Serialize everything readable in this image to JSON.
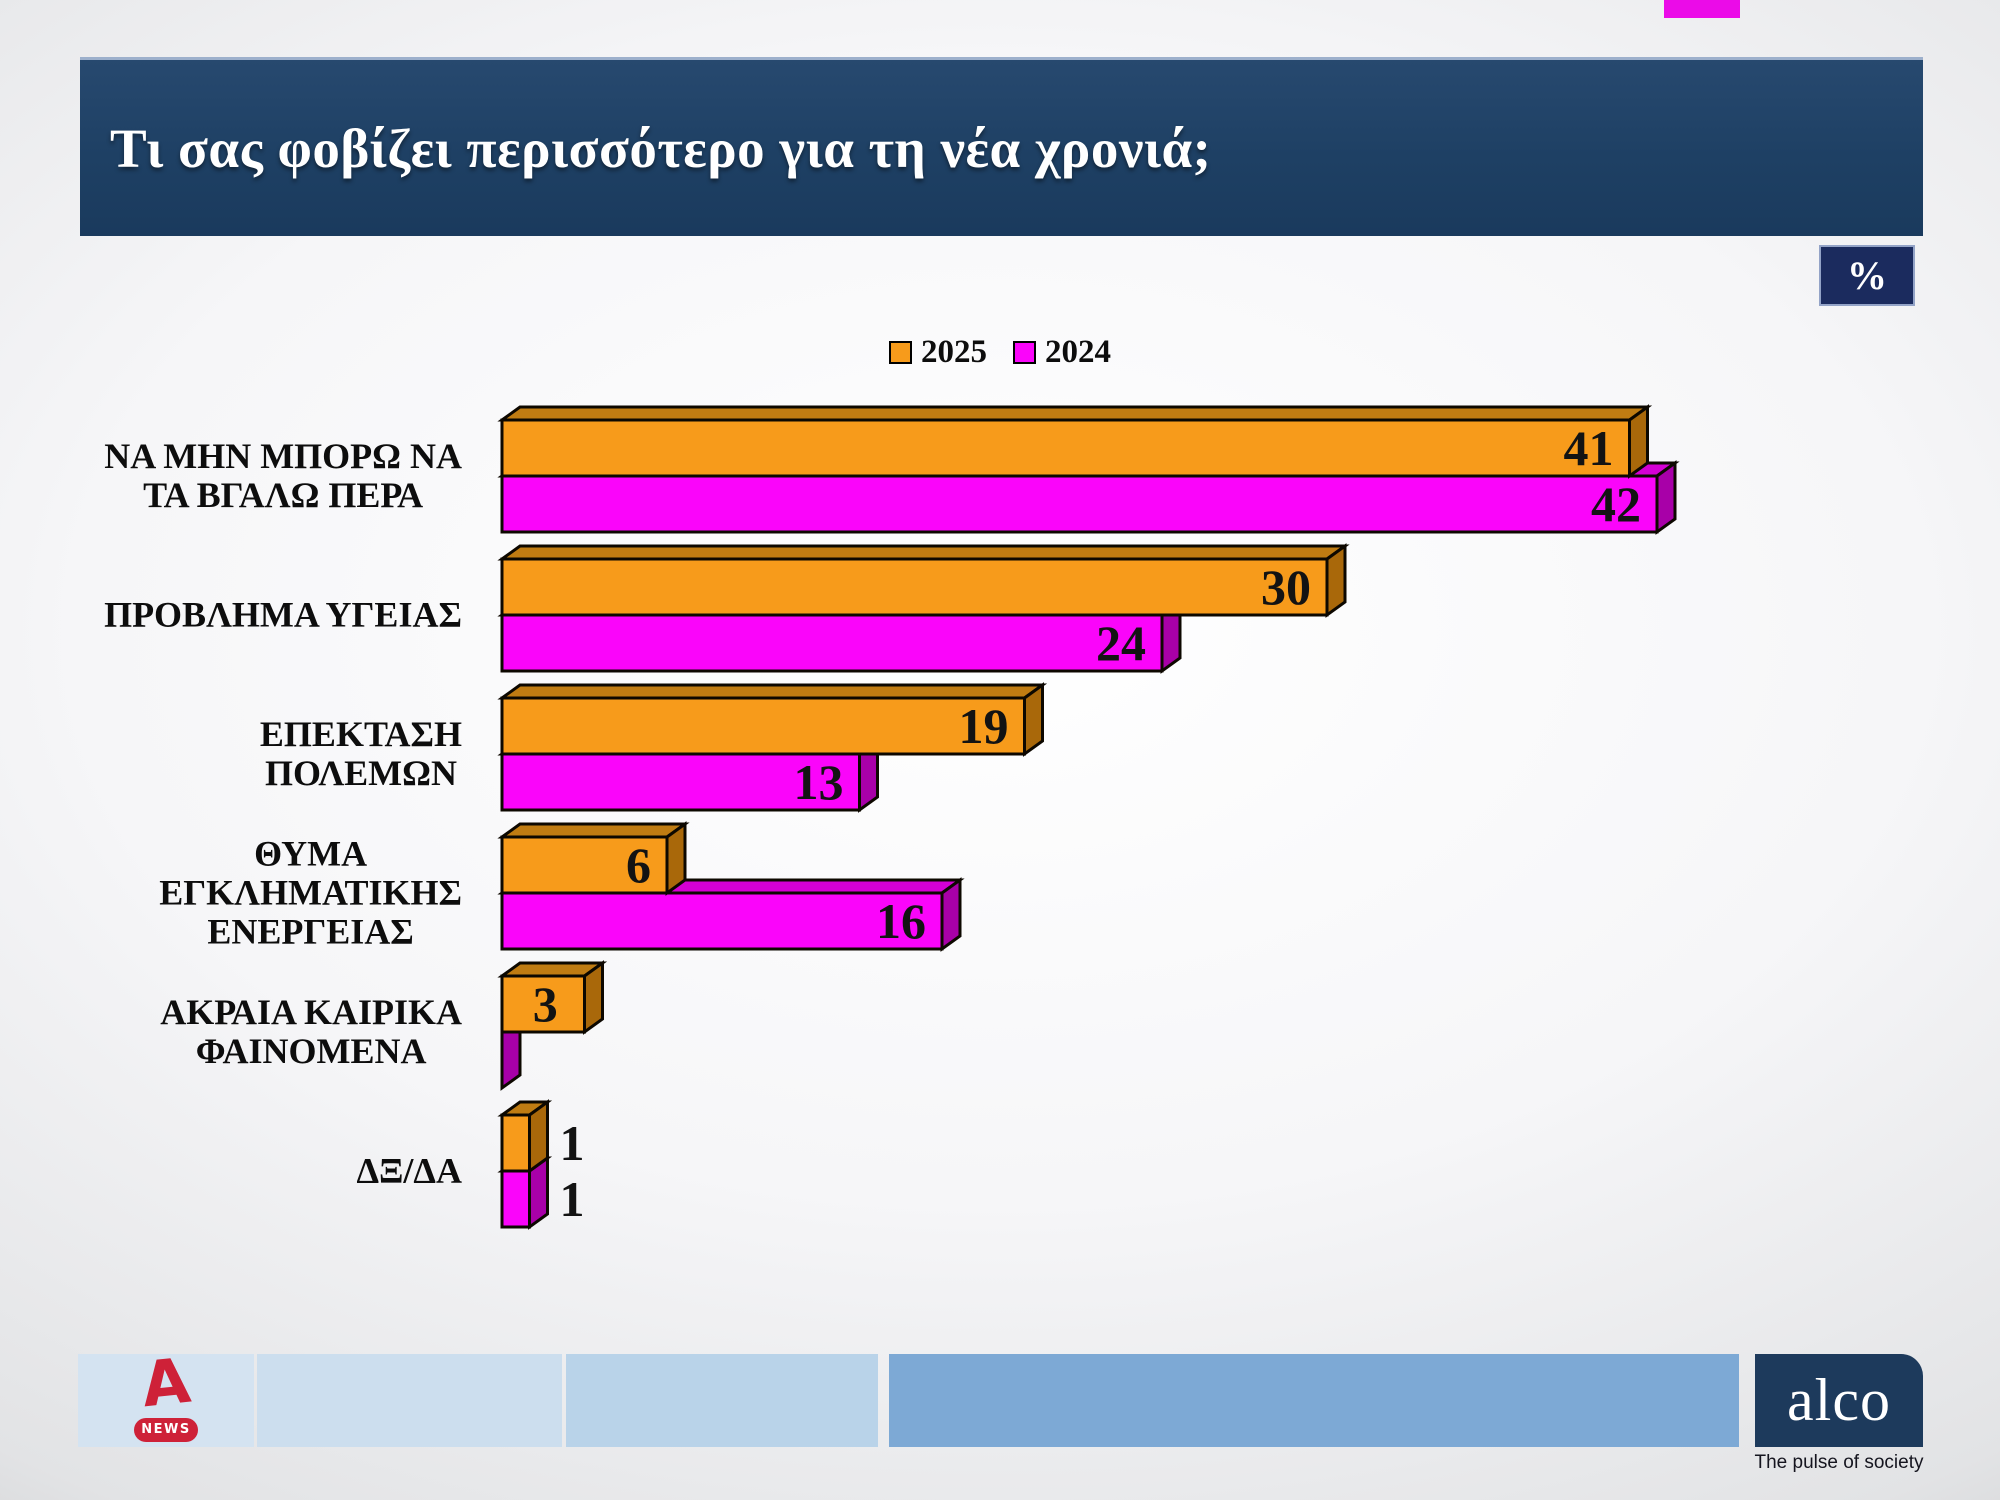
{
  "header": {
    "title": "Τι σας φοβίζει περισσότερο για τη νέα χρονιά;",
    "percent_label": "%"
  },
  "legend": {
    "items": [
      {
        "label": "2025",
        "color": "#F79B1B"
      },
      {
        "label": "2024",
        "color": "#FA05FA"
      }
    ]
  },
  "chart_data": {
    "type": "bar",
    "orientation": "horizontal",
    "units": "percent",
    "title": "Τι σας φοβίζει περισσότερο για τη νέα χρονιά;",
    "legend_position": "top-center",
    "grid": false,
    "axis_labels_hidden": true,
    "xlim": [
      0,
      45
    ],
    "categories": [
      "ΝΑ ΜΗΝ ΜΠΟΡΩ ΝΑ ΤΑ ΒΓΑΛΩ ΠΕΡΑ",
      "ΠΡΟΒΛΗΜΑ ΥΓΕΙΑΣ",
      "ΕΠΕΚΤΑΣΗ ΠΟΛΕΜΩΝ",
      "ΘΥΜΑ ΕΓΚΛΗΜΑΤΙΚΗΣ ΕΝΕΡΓΕΙΑΣ",
      "ΑΚΡΑΙΑ ΚΑΙΡΙΚΑ ΦΑΙΝΟΜΕΝΑ",
      "ΔΞ/ΔΑ"
    ],
    "category_lines": [
      [
        "ΝΑ ΜΗΝ ΜΠΟΡΩ ΝΑ",
        "ΤΑ ΒΓΑΛΩ ΠΕΡΑ"
      ],
      [
        "ΠΡΟΒΛΗΜΑ ΥΓΕΙΑΣ"
      ],
      [
        "ΕΠΕΚΤΑΣΗ",
        "ΠΟΛΕΜΩΝ"
      ],
      [
        "ΘΥΜΑ",
        "ΕΓΚΛΗΜΑΤΙΚΗΣ",
        "ΕΝΕΡΓΕΙΑΣ"
      ],
      [
        "ΑΚΡΑΙΑ ΚΑΙΡΙΚΑ",
        "ΦΑΙΝΟΜΕΝΑ"
      ],
      [
        "ΔΞ/ΔΑ"
      ]
    ],
    "series": [
      {
        "name": "2025",
        "values": [
          41,
          30,
          19,
          6,
          3,
          1
        ],
        "color_front": "#F79B1B",
        "color_top": "#C07C12",
        "color_side": "#A9680A"
      },
      {
        "name": "2024",
        "values": [
          42,
          24,
          13,
          16,
          0,
          1
        ],
        "color_front": "#FA05FA",
        "color_top": "#D400D4",
        "color_side": "#A800A8"
      }
    ]
  },
  "footer": {
    "alpha_a_glyph": "A",
    "alpha_news_label": "NEWS",
    "alco_label": "alco",
    "alco_tagline": "The pulse of society"
  }
}
